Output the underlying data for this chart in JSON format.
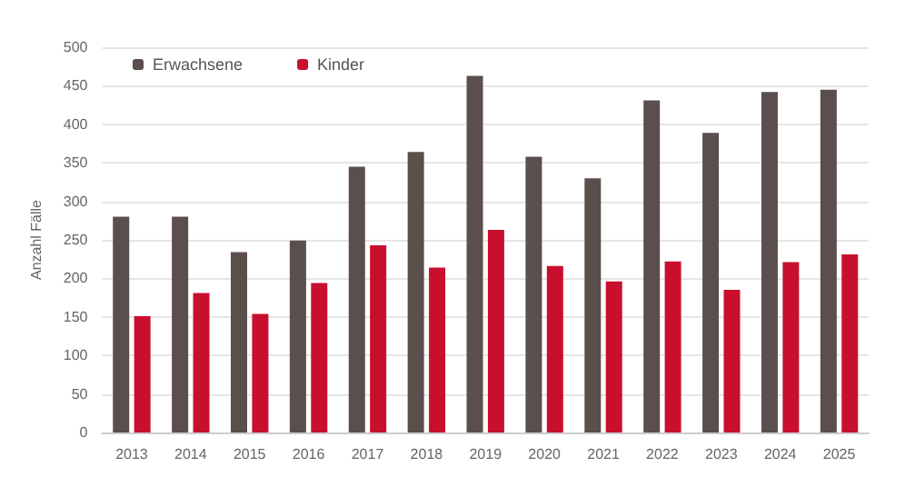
{
  "chart_data": {
    "type": "bar",
    "ylabel": "Anzahl Fälle",
    "categories": [
      "2013",
      "2014",
      "2015",
      "2016",
      "2017",
      "2018",
      "2019",
      "2020",
      "2021",
      "2022",
      "2023",
      "2024",
      "2025"
    ],
    "series": [
      {
        "name": "Erwachsene",
        "color": "#5a4f4c",
        "values": [
          280,
          280,
          234,
          249,
          345,
          364,
          463,
          358,
          330,
          431,
          389,
          442,
          445
        ]
      },
      {
        "name": "Kinder",
        "color": "#c8102e",
        "values": [
          151,
          181,
          154,
          194,
          243,
          214,
          263,
          216,
          196,
          222,
          185,
          221,
          231
        ]
      }
    ],
    "ylim": [
      0,
      500
    ],
    "yticks": [
      0,
      50,
      100,
      150,
      200,
      250,
      300,
      350,
      400,
      450,
      500
    ],
    "grid": "y",
    "legend": "top left"
  }
}
